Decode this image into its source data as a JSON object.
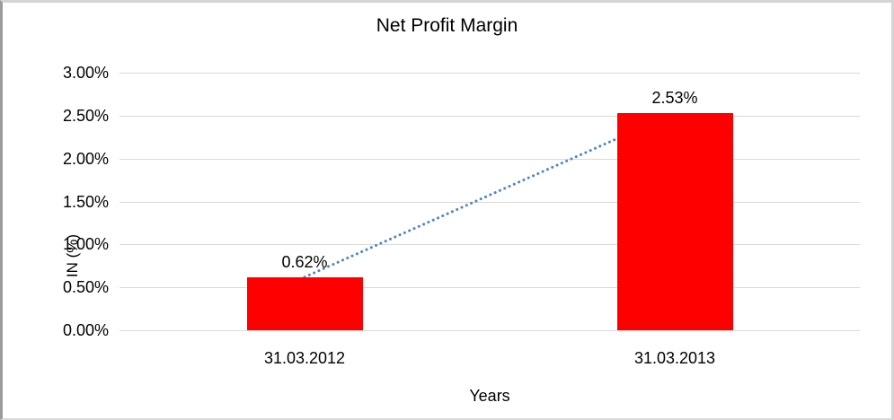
{
  "chart_data": {
    "type": "bar",
    "title": "Net Profit Margin",
    "categories": [
      "31.03.2012",
      "31.03.2013"
    ],
    "values": [
      0.62,
      2.53
    ],
    "value_labels": [
      "0.62%",
      "2.53%"
    ],
    "xlabel": "Years",
    "ylabel": "IN (%)",
    "ylim": [
      0,
      3.0
    ],
    "ytick_step": 0.5,
    "ytick_labels": [
      "0.00%",
      "0.50%",
      "1.00%",
      "1.50%",
      "2.00%",
      "2.50%",
      "3.00%"
    ],
    "grid": true,
    "legend": "none",
    "bar_color": "#fe0000",
    "gridline_color": "#d9d9d9",
    "trendline": {
      "style": "dotted",
      "color": "#4f86c6",
      "from_value": 0.62,
      "to_value": 2.53
    }
  }
}
